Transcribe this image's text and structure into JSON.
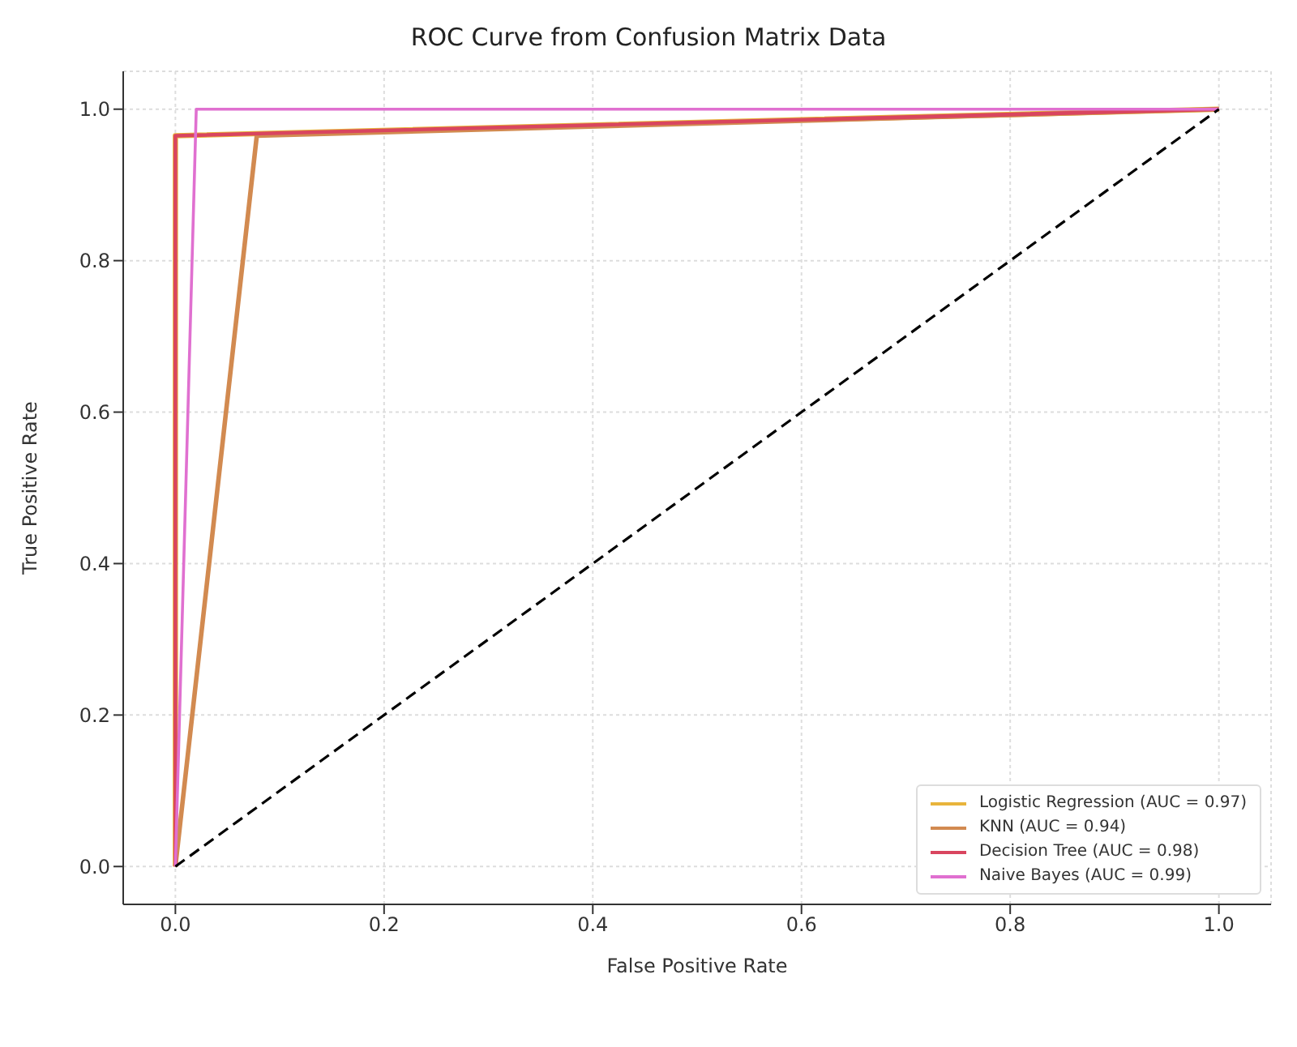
{
  "chart_data": {
    "type": "line",
    "title": "ROC Curve from Confusion Matrix Data",
    "xlabel": "False Positive Rate",
    "ylabel": "True Positive Rate",
    "series": [
      {
        "name": "Logistic Regression (AUC = 0.97)",
        "color": "#e8b43c",
        "x": [
          0,
          0,
          1
        ],
        "values": [
          0,
          0.965,
          1
        ]
      },
      {
        "name": "KNN (AUC = 0.94)",
        "color": "#d28a50",
        "x": [
          0,
          0.078,
          1
        ],
        "values": [
          0,
          0.965,
          1
        ]
      },
      {
        "name": "Decision Tree (AUC = 0.98)",
        "color": "#d9455f",
        "x": [
          0,
          0,
          1
        ],
        "values": [
          0,
          0.965,
          1
        ]
      },
      {
        "name": "Naive Bayes (AUC = 0.99)",
        "color": "#e070d0",
        "x": [
          0,
          0.02,
          1
        ],
        "values": [
          0,
          1,
          1
        ]
      },
      {
        "color": "#000000",
        "line_style": "dashed",
        "x": [
          0,
          1
        ],
        "values": [
          0,
          1
        ]
      }
    ],
    "xlim": [
      -0.05,
      1.05
    ],
    "ylim": [
      -0.05,
      1.05
    ],
    "xticks": [
      {
        "value": 0,
        "label": "0.0"
      },
      0.2,
      0.4,
      0.6,
      0.8,
      {
        "value": 1,
        "label": "1.0"
      }
    ],
    "yticks": [
      {
        "value": 0,
        "label": "0.0"
      },
      0.2,
      0.4,
      0.6,
      0.8,
      {
        "value": 1,
        "label": "1.0"
      }
    ],
    "grid": true,
    "legend": "bottom right",
    "marker": "none",
    "line_style": "solid"
  }
}
